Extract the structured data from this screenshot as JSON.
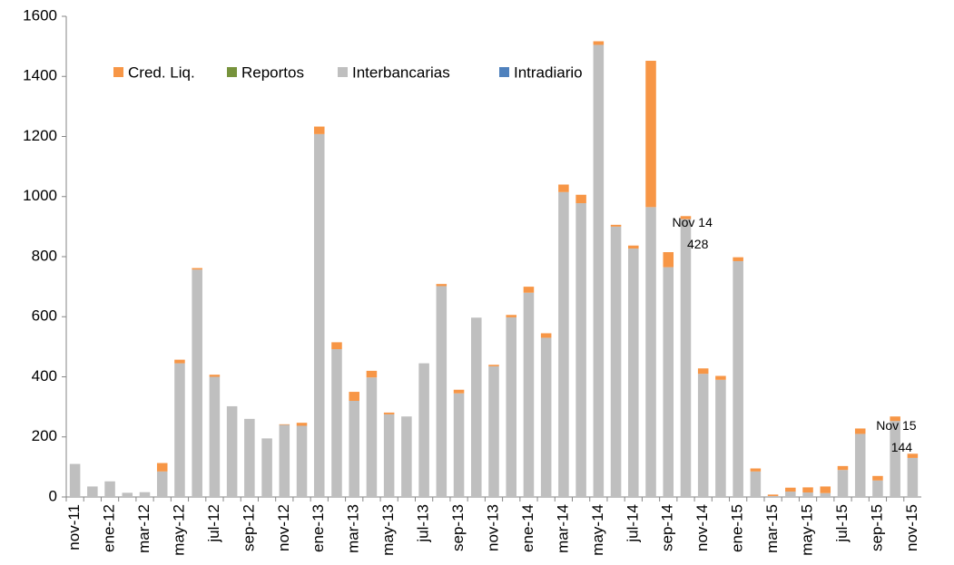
{
  "chart_data": {
    "type": "stacked-bar",
    "categories": [
      "nov-11",
      null,
      "ene-12",
      null,
      "mar-12",
      null,
      "may-12",
      null,
      "jul-12",
      null,
      "sep-12",
      null,
      "nov-12",
      null,
      "ene-13",
      null,
      "mar-13",
      null,
      "may-13",
      null,
      "jul-13",
      null,
      "sep-13",
      null,
      "nov-13",
      null,
      "ene-14",
      null,
      "mar-14",
      null,
      "may-14",
      null,
      "jul-14",
      null,
      "sep-14",
      null,
      "nov-14",
      null,
      "ene-15",
      null,
      "mar-15",
      null,
      "may-15",
      null,
      "jul-15",
      null,
      "sep-15",
      null,
      "nov-15"
    ],
    "series": [
      {
        "name": "Cred. Liq.",
        "color": "#f79646",
        "values": [
          0,
          0,
          0,
          0,
          0,
          28,
          12,
          5,
          7,
          0,
          0,
          0,
          2,
          10,
          25,
          23,
          30,
          22,
          6,
          0,
          0,
          7,
          12,
          0,
          5,
          8,
          20,
          15,
          25,
          28,
          12,
          6,
          10,
          487,
          50,
          10,
          18,
          13,
          13,
          10,
          5,
          13,
          17,
          22,
          13,
          18,
          15,
          15,
          14
        ]
      },
      {
        "name": "Reportos",
        "color": "#77933c",
        "values": [
          0,
          0,
          0,
          0,
          0,
          0,
          0,
          0,
          0,
          0,
          0,
          0,
          0,
          0,
          0,
          0,
          0,
          0,
          0,
          0,
          0,
          0,
          0,
          0,
          0,
          0,
          0,
          0,
          0,
          0,
          0,
          0,
          0,
          0,
          0,
          0,
          0,
          0,
          0,
          0,
          0,
          0,
          0,
          0,
          0,
          0,
          0,
          0,
          0
        ]
      },
      {
        "name": "Interbancarias",
        "color": "#bfbfbf",
        "values": [
          110,
          35,
          52,
          14,
          16,
          85,
          445,
          757,
          400,
          302,
          260,
          195,
          240,
          237,
          1208,
          492,
          320,
          398,
          275,
          268,
          445,
          702,
          345,
          597,
          435,
          598,
          680,
          530,
          1015,
          978,
          1505,
          900,
          827,
          965,
          765,
          925,
          410,
          390,
          785,
          85,
          3,
          18,
          15,
          13,
          90,
          210,
          55,
          253,
          130
        ]
      },
      {
        "name": "Intradiario",
        "color": "#4f81bd",
        "values": [
          0,
          0,
          0,
          0,
          0,
          0,
          0,
          0,
          0,
          0,
          0,
          0,
          0,
          0,
          0,
          0,
          0,
          0,
          0,
          0,
          0,
          0,
          0,
          0,
          0,
          0,
          0,
          0,
          0,
          0,
          0,
          0,
          0,
          0,
          0,
          0,
          0,
          0,
          0,
          0,
          0,
          0,
          0,
          0,
          0,
          0,
          0,
          0,
          0
        ]
      }
    ],
    "ylim": [
      0,
      1600
    ],
    "yticks": [
      0,
      200,
      400,
      600,
      800,
      1000,
      1200,
      1400,
      1600
    ],
    "annotations": [
      {
        "label": "Nov 14",
        "value": 428
      },
      {
        "label": "Nov  15",
        "value": 144
      }
    ]
  }
}
